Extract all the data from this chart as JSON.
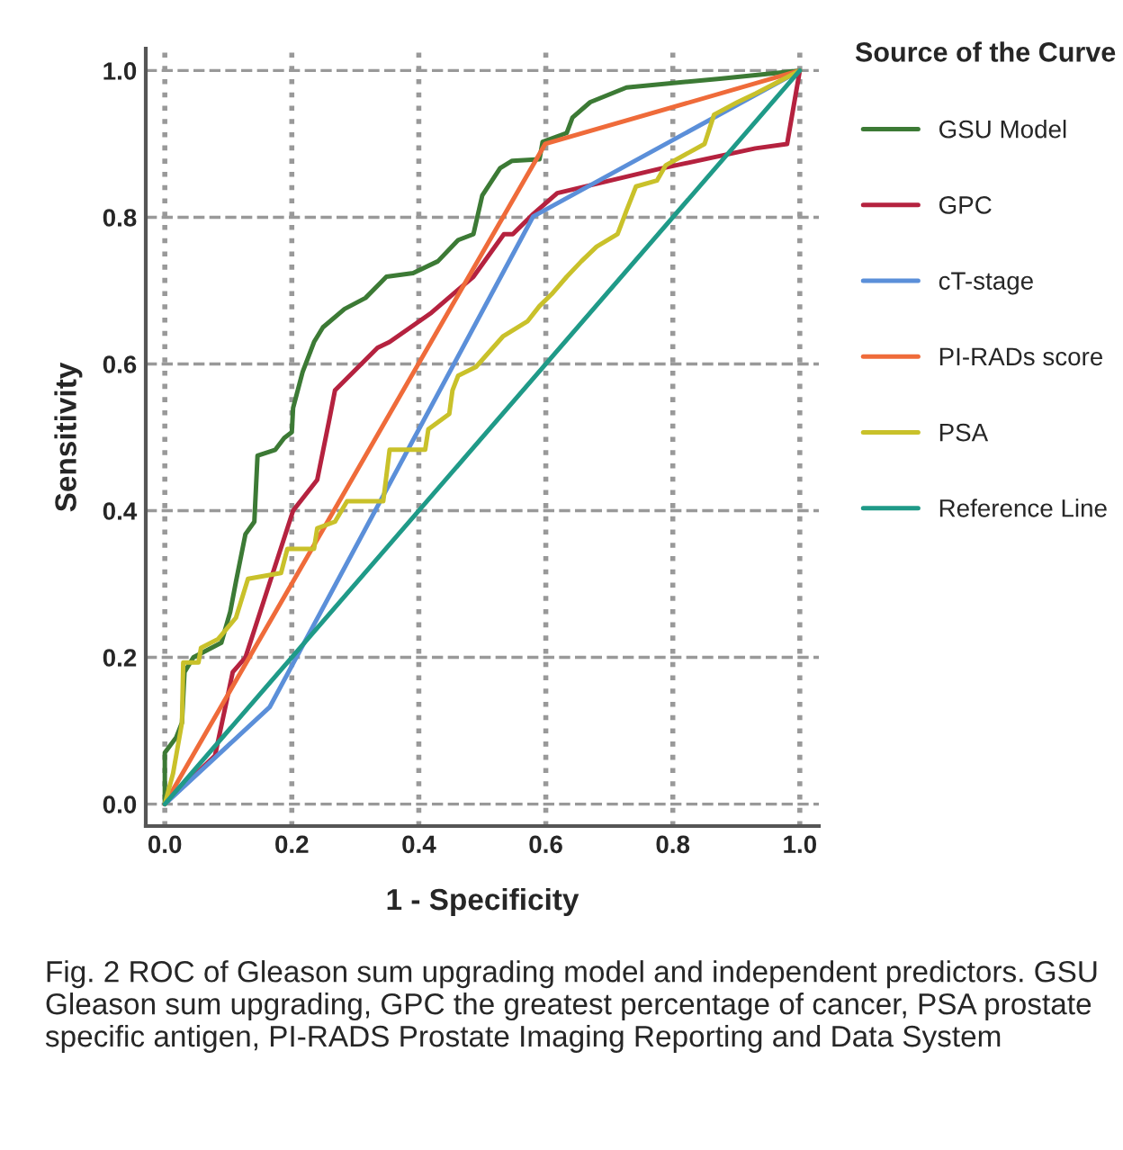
{
  "chart_data": {
    "type": "line",
    "xlabel": "1 - Specificity",
    "ylabel": "Sensitivity",
    "legend_title": "Source of the Curve",
    "legend": "right",
    "grid": true,
    "marker": "none",
    "line_style": "solid",
    "xlim": [
      -0.03,
      1.03
    ],
    "ylim": [
      -0.03,
      1.03
    ],
    "xticks": [
      {
        "value": 0,
        "label": "0.0"
      },
      0.2,
      0.4,
      0.6,
      0.8,
      {
        "value": 1,
        "label": "1.0"
      }
    ],
    "yticks": [
      {
        "value": 0,
        "label": "0.0"
      },
      0.2,
      0.4,
      0.6,
      0.8,
      {
        "value": 1,
        "label": "1.0"
      }
    ],
    "series": [
      {
        "name": "GSU Model",
        "color": "#3c7a35",
        "x": [
          0,
          0,
          0.018,
          0.027,
          0.031,
          0.045,
          0.089,
          0.103,
          0.112,
          0.127,
          0.141,
          0.146,
          0.174,
          0.188,
          0.2,
          0.202,
          0.217,
          0.235,
          0.249,
          0.283,
          0.316,
          0.34,
          0.349,
          0.391,
          0.43,
          0.462,
          0.486,
          0.5,
          0.528,
          0.547,
          0.59,
          0.595,
          0.633,
          0.642,
          0.67,
          0.727,
          0.874,
          1.0
        ],
        "values": [
          0,
          0.07,
          0.091,
          0.111,
          0.18,
          0.2,
          0.22,
          0.262,
          0.303,
          0.368,
          0.385,
          0.475,
          0.483,
          0.499,
          0.507,
          0.54,
          0.589,
          0.63,
          0.65,
          0.675,
          0.69,
          0.711,
          0.719,
          0.724,
          0.74,
          0.769,
          0.777,
          0.83,
          0.867,
          0.877,
          0.879,
          0.903,
          0.915,
          0.936,
          0.957,
          0.977,
          0.989,
          1.0
        ]
      },
      {
        "name": "GPC",
        "color": "#b5223f",
        "x": [
          0,
          0.079,
          0.107,
          0.127,
          0.202,
          0.24,
          0.259,
          0.268,
          0.335,
          0.354,
          0.42,
          0.486,
          0.534,
          0.548,
          0.581,
          0.618,
          0.779,
          0.93,
          0.98,
          1.0
        ],
        "values": [
          0,
          0.066,
          0.18,
          0.2,
          0.4,
          0.442,
          0.524,
          0.564,
          0.622,
          0.63,
          0.67,
          0.719,
          0.777,
          0.777,
          0.805,
          0.833,
          0.866,
          0.894,
          0.9,
          1.0
        ]
      },
      {
        "name": "cT-stage",
        "color": "#5b8fd9",
        "x": [
          0,
          0.165,
          0.58,
          1.0
        ],
        "values": [
          0,
          0.132,
          0.801,
          1.0
        ]
      },
      {
        "name": "PI-RADs score",
        "color": "#ef6b3a",
        "x": [
          0,
          0.599,
          1.0
        ],
        "values": [
          0,
          0.9,
          1.0
        ]
      },
      {
        "name": "PSA",
        "color": "#c9c12a",
        "x": [
          0,
          0.013,
          0.027,
          0.029,
          0.053,
          0.057,
          0.084,
          0.112,
          0.131,
          0.183,
          0.193,
          0.235,
          0.24,
          0.268,
          0.287,
          0.344,
          0.354,
          0.391,
          0.41,
          0.415,
          0.448,
          0.453,
          0.462,
          0.49,
          0.533,
          0.571,
          0.59,
          0.609,
          0.633,
          0.656,
          0.68,
          0.713,
          0.727,
          0.742,
          0.775,
          0.789,
          0.85,
          0.865,
          0.902,
          0.931,
          1.0
        ],
        "values": [
          0,
          0.042,
          0.111,
          0.193,
          0.193,
          0.213,
          0.225,
          0.254,
          0.307,
          0.315,
          0.348,
          0.348,
          0.376,
          0.385,
          0.413,
          0.413,
          0.483,
          0.483,
          0.483,
          0.511,
          0.532,
          0.564,
          0.584,
          0.596,
          0.638,
          0.658,
          0.679,
          0.695,
          0.719,
          0.74,
          0.76,
          0.777,
          0.809,
          0.842,
          0.85,
          0.871,
          0.9,
          0.94,
          0.957,
          0.969,
          1.0
        ]
      },
      {
        "name": "Reference Line",
        "color": "#1f9a88",
        "x": [
          0,
          1.0
        ],
        "values": [
          0,
          1.0
        ]
      }
    ],
    "annotations": [
      "Fig. 2 ROC of Gleason sum upgrading model and independent predictors. GSU Gleason sum upgrading, GPC the greatest percentage of cancer, PSA prostate specific antigen, PI-RADS Prostate Imaging Reporting and Data System"
    ]
  }
}
